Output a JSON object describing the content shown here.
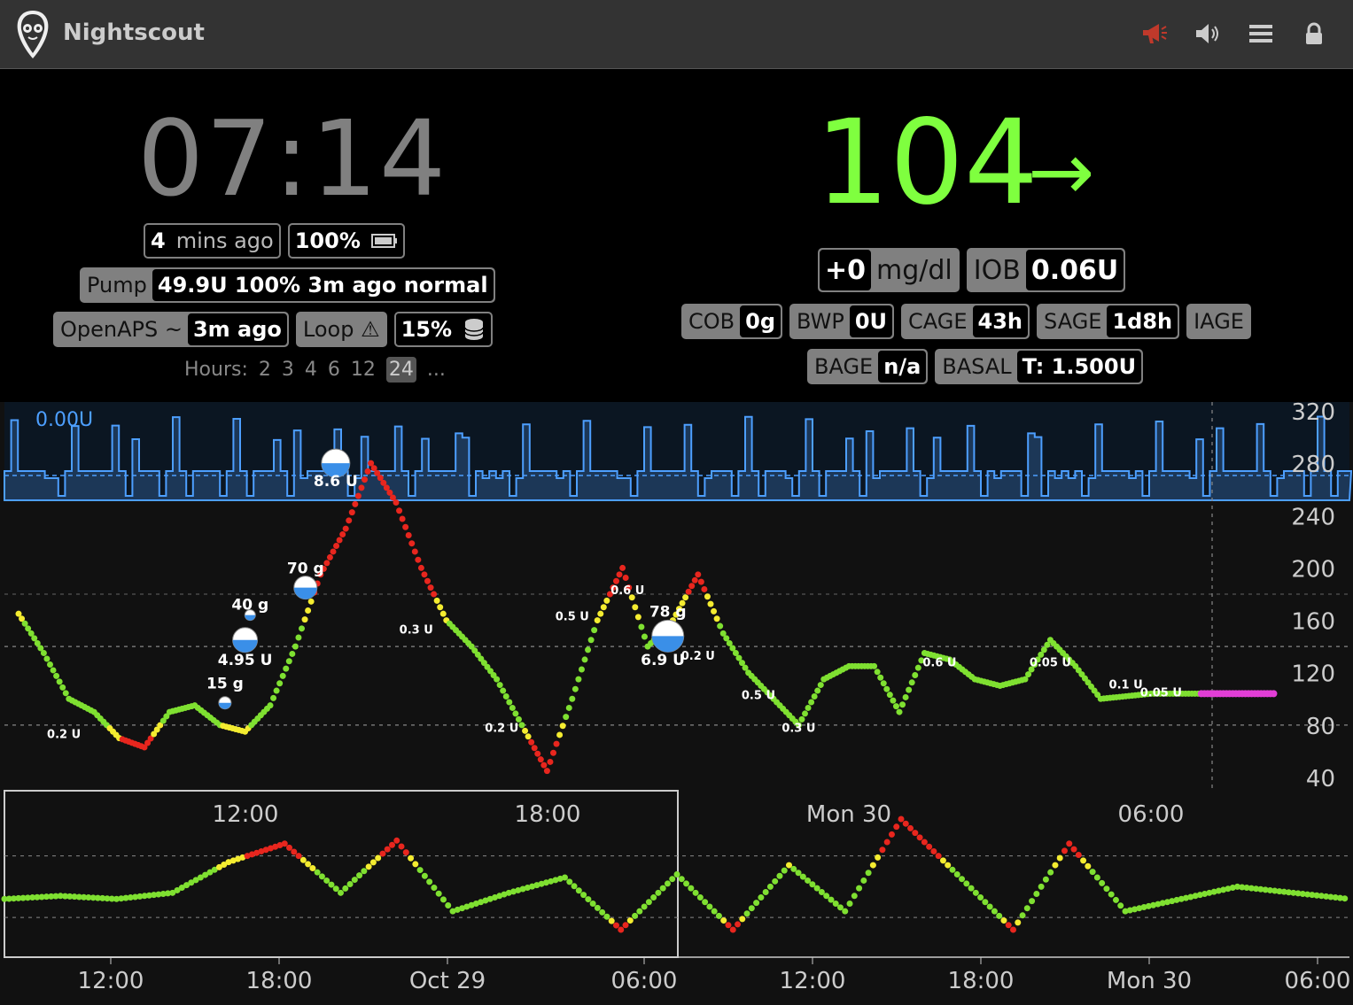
{
  "header": {
    "title": "Nightscout"
  },
  "status": {
    "clock": "07:14",
    "last_reading": {
      "value": "4",
      "label": "mins ago"
    },
    "uploader_battery": "100%",
    "pump": {
      "label": "Pump",
      "value": "49.9U 100% 3m ago normal"
    },
    "openaps": {
      "label": "OpenAPS ~",
      "value": "3m ago"
    },
    "loop": {
      "label": "Loop ⚠"
    },
    "storage": "15%",
    "hours": {
      "label": "Hours:",
      "options": [
        "2",
        "3",
        "4",
        "6",
        "12",
        "24",
        "..."
      ],
      "selected": "24"
    }
  },
  "bg": {
    "value": "104",
    "direction_arrow": "→",
    "color": "#7fff3f",
    "delta": {
      "value": "+0",
      "unit": "mg/dl"
    },
    "iob": {
      "label": "IOB",
      "value": "0.06U"
    },
    "pills": [
      {
        "label": "COB",
        "value": "0g"
      },
      {
        "label": "BWP",
        "value": "0U"
      },
      {
        "label": "CAGE",
        "value": "43h"
      },
      {
        "label": "SAGE",
        "value": "1d8h"
      },
      {
        "label": "IAGE",
        "value": ""
      }
    ],
    "pills2": [
      {
        "label": "BAGE",
        "value": "n/a"
      },
      {
        "label": "BASAL",
        "value": "T: 1.500U"
      }
    ]
  },
  "chart_data": [
    {
      "type": "scatter",
      "title": "",
      "basal_label": "0.00U",
      "y_ticks": [
        320,
        280,
        240,
        200,
        160,
        120,
        80,
        40
      ],
      "x_ticks": [
        "12:00",
        "18:00",
        "Mon 30",
        "06:00"
      ],
      "series": [
        {
          "x_hours": [
            0.0,
            0.5,
            1.0,
            1.5,
            2.0,
            2.5,
            3.0,
            3.5,
            4.0,
            4.5,
            5.0,
            5.5,
            6.0,
            6.5,
            7.0,
            7.5,
            8.0,
            8.5,
            9.0,
            9.5,
            10.0,
            10.5,
            11.0,
            11.5,
            12.0,
            12.5,
            13.0,
            13.5,
            14.0,
            14.5,
            15.0,
            15.5,
            16.0,
            16.5,
            17.0,
            17.5,
            18.0,
            18.5,
            19.0,
            19.5,
            20.0,
            20.5,
            21.0,
            21.5,
            22.0,
            22.5,
            23.0,
            23.5,
            24.0,
            24.5,
            25.0
          ],
          "values": [
            165,
            135,
            100,
            90,
            70,
            63,
            90,
            95,
            80,
            75,
            95,
            140,
            195,
            230,
            280,
            250,
            200,
            160,
            140,
            115,
            80,
            45,
            100,
            160,
            200,
            140,
            160,
            195,
            150,
            120,
            100,
            80,
            115,
            125,
            125,
            90,
            135,
            130,
            115,
            110,
            115,
            145,
            125,
            100,
            102,
            104,
            104,
            104,
            104,
            104,
            104
          ]
        }
      ],
      "inline_labels": [
        "4.95 U",
        "15 g",
        "8.6 U",
        "40 g",
        "70 g",
        "0.2 U",
        "0.3 U",
        "0.5 U",
        "78 g",
        "6.9 U",
        "0.6 U",
        "0.05 U",
        "0.1 U"
      ]
    },
    {
      "type": "scatter",
      "title": "",
      "x_ticks": [
        "12:00",
        "18:00",
        "Oct 29",
        "06:00",
        "12:00",
        "18:00",
        "Mon 30",
        "06:00"
      ],
      "series": [
        {
          "x_hours": [
            0,
            2,
            4,
            6,
            8,
            10,
            12,
            14,
            16,
            18,
            20,
            22,
            24,
            26,
            28,
            30,
            32,
            34,
            36,
            38,
            40,
            42,
            44,
            46,
            48
          ],
          "values": [
            110,
            115,
            110,
            120,
            170,
            200,
            120,
            205,
            90,
            120,
            145,
            60,
            150,
            60,
            165,
            90,
            240,
            150,
            60,
            200,
            90,
            110,
            130,
            120,
            110
          ]
        }
      ]
    }
  ]
}
